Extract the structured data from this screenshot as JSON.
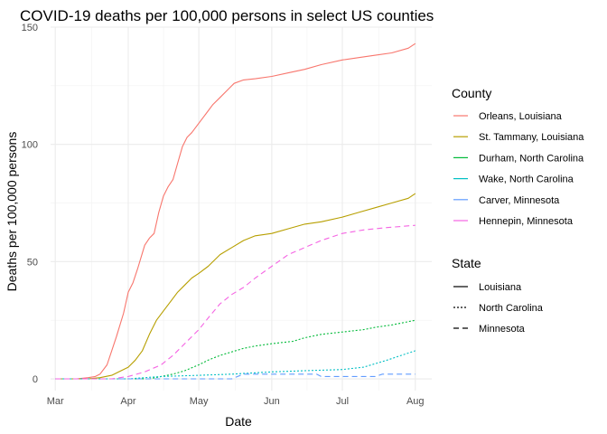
{
  "chart_data": {
    "type": "line",
    "title": "COVID-19 deaths per 100,000 persons in select US counties",
    "xlabel": "Date",
    "ylabel": "Deaths per 100,000 persons",
    "x_ticks": [
      {
        "label": "Mar",
        "date": "2020-03-01"
      },
      {
        "label": "Apr",
        "date": "2020-04-01"
      },
      {
        "label": "May",
        "date": "2020-05-01"
      },
      {
        "label": "Jun",
        "date": "2020-06-01"
      },
      {
        "label": "Jul",
        "date": "2020-07-01"
      },
      {
        "label": "Aug",
        "date": "2020-08-01"
      }
    ],
    "xlim": [
      "2020-02-28",
      "2020-08-08"
    ],
    "y_ticks": [
      0,
      50,
      100,
      150
    ],
    "ylim": [
      -5,
      150
    ],
    "grid": true,
    "legend_placement": "right",
    "legends": {
      "county": {
        "title": "County",
        "items": [
          {
            "label": "Orleans, Louisiana",
            "color": "#F8766D"
          },
          {
            "label": "St. Tammany, Louisiana",
            "color": "#B79F00"
          },
          {
            "label": "Durham, North Carolina",
            "color": "#00BA38"
          },
          {
            "label": "Wake, North Carolina",
            "color": "#00BFC4"
          },
          {
            "label": "Carver, Minnesota",
            "color": "#619CFF"
          },
          {
            "label": "Hennepin, Minnesota",
            "color": "#F564E3"
          }
        ]
      },
      "state": {
        "title": "State",
        "items": [
          {
            "label": "Louisiana",
            "linetype": "solid"
          },
          {
            "label": "North Carolina",
            "linetype": "dotted"
          },
          {
            "label": "Minnesota",
            "linetype": "dashed"
          }
        ]
      }
    },
    "series": [
      {
        "name": "Orleans, Louisiana",
        "state": "Louisiana",
        "linetype": "solid",
        "color": "#F8766D",
        "points": [
          [
            "2020-03-01",
            0
          ],
          [
            "2020-03-10",
            0
          ],
          [
            "2020-03-15",
            0.5
          ],
          [
            "2020-03-18",
            1
          ],
          [
            "2020-03-20",
            2
          ],
          [
            "2020-03-23",
            6
          ],
          [
            "2020-03-25",
            12
          ],
          [
            "2020-03-27",
            18
          ],
          [
            "2020-03-30",
            28
          ],
          [
            "2020-04-01",
            37
          ],
          [
            "2020-04-03",
            41
          ],
          [
            "2020-04-05",
            47
          ],
          [
            "2020-04-08",
            57
          ],
          [
            "2020-04-10",
            60
          ],
          [
            "2020-04-12",
            62
          ],
          [
            "2020-04-14",
            71
          ],
          [
            "2020-04-16",
            78
          ],
          [
            "2020-04-18",
            82
          ],
          [
            "2020-04-20",
            85
          ],
          [
            "2020-04-22",
            92
          ],
          [
            "2020-04-24",
            99
          ],
          [
            "2020-04-26",
            103
          ],
          [
            "2020-04-28",
            105
          ],
          [
            "2020-05-01",
            109
          ],
          [
            "2020-05-04",
            113
          ],
          [
            "2020-05-07",
            117
          ],
          [
            "2020-05-10",
            120
          ],
          [
            "2020-05-13",
            123
          ],
          [
            "2020-05-16",
            126
          ],
          [
            "2020-05-20",
            127.5
          ],
          [
            "2020-05-25",
            128
          ],
          [
            "2020-06-01",
            129
          ],
          [
            "2020-06-08",
            130.5
          ],
          [
            "2020-06-15",
            132
          ],
          [
            "2020-06-22",
            134
          ],
          [
            "2020-07-01",
            136
          ],
          [
            "2020-07-08",
            137
          ],
          [
            "2020-07-15",
            138
          ],
          [
            "2020-07-22",
            139
          ],
          [
            "2020-07-29",
            141
          ],
          [
            "2020-08-01",
            143
          ]
        ]
      },
      {
        "name": "St. Tammany, Louisiana",
        "state": "Louisiana",
        "linetype": "solid",
        "color": "#B79F00",
        "points": [
          [
            "2020-03-01",
            0
          ],
          [
            "2020-03-15",
            0
          ],
          [
            "2020-03-20",
            0.5
          ],
          [
            "2020-03-25",
            1.5
          ],
          [
            "2020-03-28",
            3
          ],
          [
            "2020-04-01",
            5
          ],
          [
            "2020-04-04",
            8
          ],
          [
            "2020-04-07",
            12
          ],
          [
            "2020-04-10",
            19
          ],
          [
            "2020-04-13",
            25
          ],
          [
            "2020-04-16",
            29
          ],
          [
            "2020-04-19",
            33
          ],
          [
            "2020-04-22",
            37
          ],
          [
            "2020-04-25",
            40
          ],
          [
            "2020-04-28",
            43
          ],
          [
            "2020-05-01",
            45
          ],
          [
            "2020-05-05",
            48
          ],
          [
            "2020-05-10",
            53
          ],
          [
            "2020-05-15",
            56
          ],
          [
            "2020-05-20",
            59
          ],
          [
            "2020-05-25",
            61
          ],
          [
            "2020-06-01",
            62
          ],
          [
            "2020-06-08",
            64
          ],
          [
            "2020-06-15",
            66
          ],
          [
            "2020-06-22",
            67
          ],
          [
            "2020-07-01",
            69
          ],
          [
            "2020-07-08",
            71
          ],
          [
            "2020-07-15",
            73
          ],
          [
            "2020-07-22",
            75
          ],
          [
            "2020-07-29",
            77
          ],
          [
            "2020-08-01",
            79
          ]
        ]
      },
      {
        "name": "Durham, North Carolina",
        "state": "North Carolina",
        "linetype": "dotted",
        "color": "#00BA38",
        "points": [
          [
            "2020-03-01",
            0
          ],
          [
            "2020-04-10",
            0
          ],
          [
            "2020-04-15",
            1
          ],
          [
            "2020-04-20",
            2
          ],
          [
            "2020-04-25",
            3.5
          ],
          [
            "2020-05-01",
            6
          ],
          [
            "2020-05-05",
            8
          ],
          [
            "2020-05-10",
            10
          ],
          [
            "2020-05-15",
            11.5
          ],
          [
            "2020-05-20",
            13
          ],
          [
            "2020-05-25",
            14
          ],
          [
            "2020-06-01",
            15
          ],
          [
            "2020-06-10",
            16
          ],
          [
            "2020-06-15",
            17.5
          ],
          [
            "2020-06-22",
            19
          ],
          [
            "2020-07-01",
            20
          ],
          [
            "2020-07-10",
            21
          ],
          [
            "2020-07-15",
            22
          ],
          [
            "2020-07-22",
            23
          ],
          [
            "2020-08-01",
            25
          ]
        ]
      },
      {
        "name": "Wake, North Carolina",
        "state": "North Carolina",
        "linetype": "dotted",
        "color": "#00BFC4",
        "points": [
          [
            "2020-03-01",
            0
          ],
          [
            "2020-04-01",
            0
          ],
          [
            "2020-04-15",
            1
          ],
          [
            "2020-05-01",
            1.5
          ],
          [
            "2020-05-15",
            2
          ],
          [
            "2020-06-01",
            3
          ],
          [
            "2020-06-15",
            3.5
          ],
          [
            "2020-07-01",
            4
          ],
          [
            "2020-07-10",
            5
          ],
          [
            "2020-07-20",
            8
          ],
          [
            "2020-08-01",
            12
          ]
        ]
      },
      {
        "name": "Carver, Minnesota",
        "state": "Minnesota",
        "linetype": "dashed",
        "color": "#619CFF",
        "points": [
          [
            "2020-03-01",
            0
          ],
          [
            "2020-05-15",
            0
          ],
          [
            "2020-05-20",
            2
          ],
          [
            "2020-06-20",
            2
          ],
          [
            "2020-06-22",
            1
          ],
          [
            "2020-07-15",
            1
          ],
          [
            "2020-07-18",
            2
          ],
          [
            "2020-08-01",
            2
          ]
        ]
      },
      {
        "name": "Hennepin, Minnesota",
        "state": "Minnesota",
        "linetype": "dashed",
        "color": "#F564E3",
        "points": [
          [
            "2020-03-01",
            0
          ],
          [
            "2020-03-25",
            0
          ],
          [
            "2020-04-01",
            1
          ],
          [
            "2020-04-08",
            3
          ],
          [
            "2020-04-15",
            6
          ],
          [
            "2020-04-20",
            10
          ],
          [
            "2020-04-25",
            15
          ],
          [
            "2020-05-01",
            21
          ],
          [
            "2020-05-05",
            26
          ],
          [
            "2020-05-10",
            32
          ],
          [
            "2020-05-15",
            36
          ],
          [
            "2020-05-20",
            39
          ],
          [
            "2020-05-25",
            43
          ],
          [
            "2020-06-01",
            48
          ],
          [
            "2020-06-08",
            53
          ],
          [
            "2020-06-15",
            56
          ],
          [
            "2020-06-22",
            59
          ],
          [
            "2020-07-01",
            62
          ],
          [
            "2020-07-10",
            63.5
          ],
          [
            "2020-07-20",
            64.5
          ],
          [
            "2020-08-01",
            65.5
          ]
        ]
      }
    ]
  }
}
